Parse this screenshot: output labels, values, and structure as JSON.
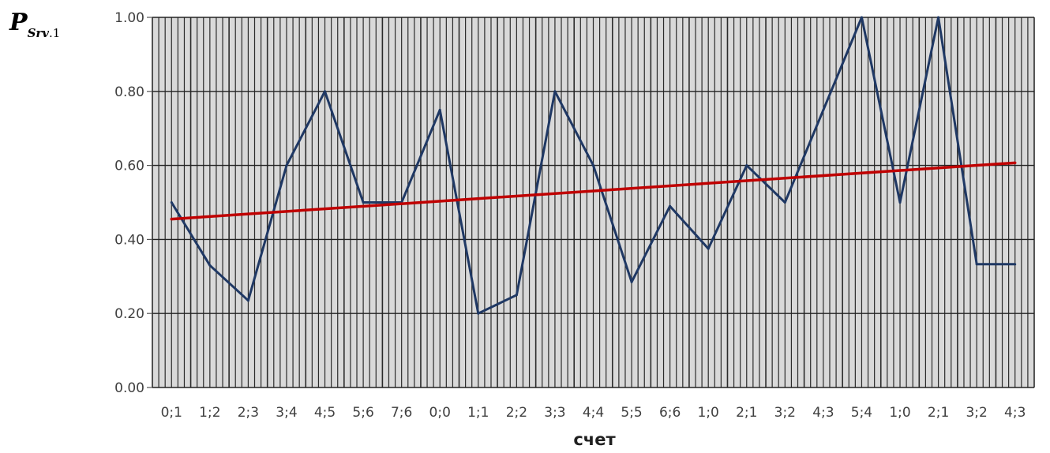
{
  "chart_data": {
    "type": "line",
    "categories": [
      "0;1",
      "1;2",
      "2;3",
      "3;4",
      "4;5",
      "5;6",
      "7;6",
      "0;0",
      "1;1",
      "2;2",
      "3;3",
      "4;4",
      "5;5",
      "6;6",
      "1;0",
      "2;1",
      "3;2",
      "4;3",
      "5;4",
      "1;0",
      "2;1",
      "3;2",
      "4;3"
    ],
    "series": [
      {
        "values": [
          0.5,
          0.33,
          0.235,
          0.6,
          0.8,
          0.5,
          0.5,
          0.75,
          0.2,
          0.25,
          0.8,
          0.6,
          0.285,
          0.49,
          0.375,
          0.6,
          0.5,
          0.75,
          1.0,
          0.5,
          1.0,
          0.333,
          0.333
        ]
      }
    ],
    "trendline": {
      "start": 0.455,
      "end": 0.607
    },
    "ylabel": {
      "main": "P",
      "sub": "Srv",
      "suffix": ".1"
    },
    "xlabel": "счет",
    "ylim": [
      0,
      1
    ],
    "yticks": [
      "0.00",
      "0.20",
      "0.40",
      "0.60",
      "0.80",
      "1.00"
    ],
    "grid": true,
    "colors": {
      "series": "#1f3864",
      "trendline": "#c00000",
      "plot_bg": "#d9d9d9",
      "grid": "#2b2b2b"
    }
  }
}
